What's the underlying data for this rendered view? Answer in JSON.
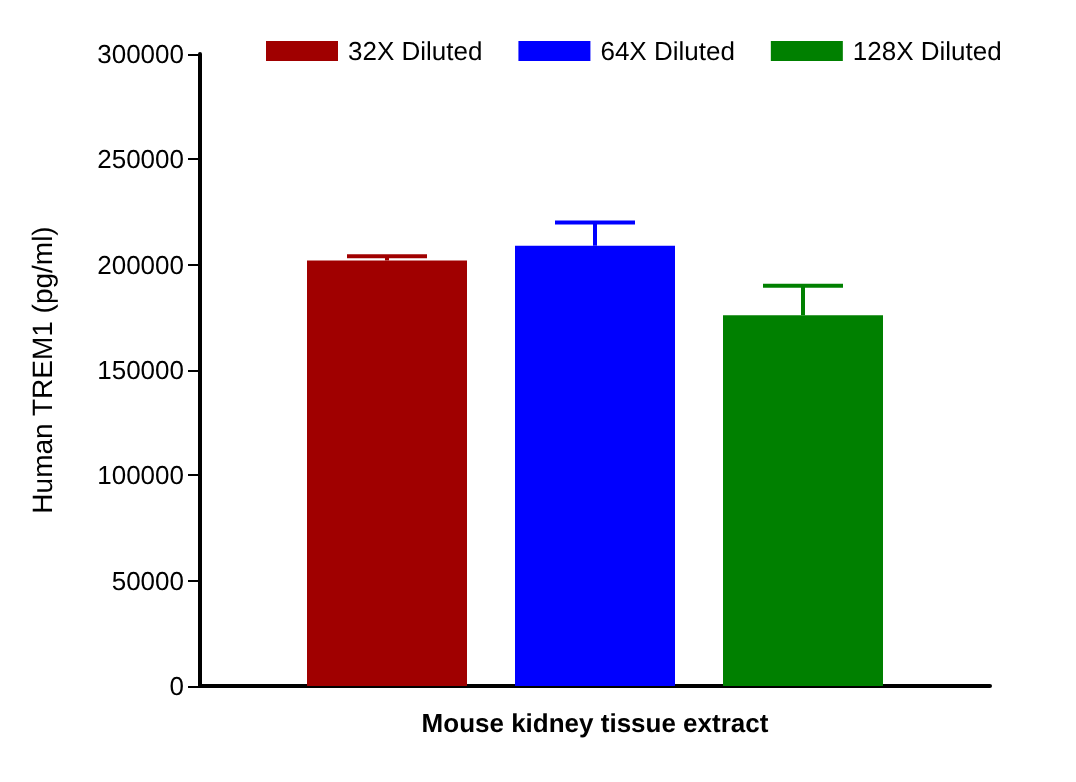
{
  "chart_data": {
    "type": "bar",
    "ylabel": "Human TREM1 (pg/ml)",
    "categories": [
      "Mouse kidney tissue extract"
    ],
    "series": [
      {
        "name": "32X Diluted",
        "color": "#a00000",
        "values": [
          202000
        ],
        "errors": [
          2000
        ]
      },
      {
        "name": "64X Diluted",
        "color": "#0000ff",
        "values": [
          209000
        ],
        "errors": [
          11000
        ]
      },
      {
        "name": "128X Diluted",
        "color": "#008000",
        "values": [
          176000
        ],
        "errors": [
          14000
        ]
      }
    ],
    "ylim": [
      0,
      300000
    ],
    "yticks": [
      0,
      50000,
      100000,
      150000,
      200000,
      250000,
      300000
    ],
    "grid": false,
    "legend": "top"
  }
}
